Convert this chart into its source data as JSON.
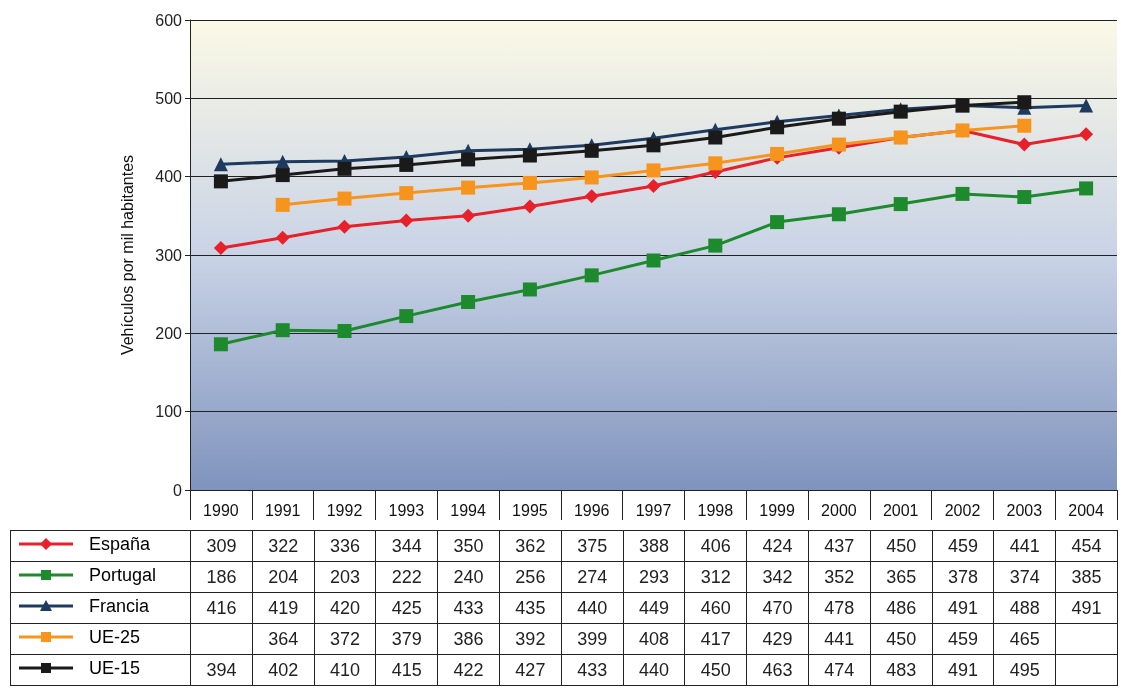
{
  "chart_data": {
    "type": "line",
    "ylabel": "Vehículos por mil habitantes",
    "categories": [
      "1990",
      "1991",
      "1992",
      "1993",
      "1994",
      "1995",
      "1996",
      "1997",
      "1998",
      "1999",
      "2000",
      "2001",
      "2002",
      "2003",
      "2004"
    ],
    "series": [
      {
        "name": "España",
        "color": "#e8202a",
        "marker": "diamond",
        "values": [
          309,
          322,
          336,
          344,
          350,
          362,
          375,
          388,
          406,
          424,
          437,
          450,
          459,
          441,
          454
        ]
      },
      {
        "name": "Portugal",
        "color": "#1e8a2e",
        "marker": "square",
        "values": [
          186,
          204,
          203,
          222,
          240,
          256,
          274,
          293,
          312,
          342,
          352,
          365,
          378,
          374,
          385
        ]
      },
      {
        "name": "Francia",
        "color": "#1f3a5f",
        "marker": "triangle",
        "values": [
          416,
          419,
          420,
          425,
          433,
          435,
          440,
          449,
          460,
          470,
          478,
          486,
          491,
          488,
          491
        ]
      },
      {
        "name": "UE-25",
        "color": "#f7941d",
        "marker": "square",
        "values": [
          null,
          364,
          372,
          379,
          386,
          392,
          399,
          408,
          417,
          429,
          441,
          450,
          459,
          465,
          null
        ]
      },
      {
        "name": "UE-15",
        "color": "#1a1a1a",
        "marker": "square",
        "values": [
          394,
          402,
          410,
          415,
          422,
          427,
          433,
          440,
          450,
          463,
          474,
          483,
          491,
          495,
          null
        ]
      }
    ],
    "ylim": [
      0,
      600
    ],
    "yticks": [
      0,
      100,
      200,
      300,
      400,
      500,
      600
    ],
    "grid": "y",
    "legend": "bottom left",
    "data_labels": true
  }
}
